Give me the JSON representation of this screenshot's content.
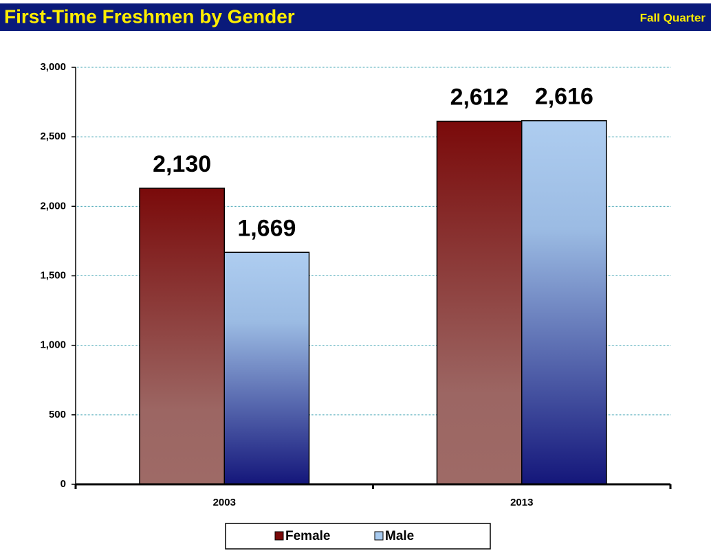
{
  "chart_data": {
    "type": "bar",
    "title": "First-Time Freshmen by Gender",
    "subtitle": "Fall Quarter",
    "categories": [
      "2003",
      "2013"
    ],
    "series": [
      {
        "name": "Female",
        "color": "#7a0a0a",
        "values": [
          2130,
          2612
        ],
        "value_labels": [
          "2,130",
          "2,612"
        ]
      },
      {
        "name": "Male",
        "color": "#a8cbf0",
        "values": [
          1669,
          2616
        ],
        "value_labels": [
          "1,669",
          "2,616"
        ]
      }
    ],
    "ylim": [
      0,
      3000
    ],
    "yticks": [
      0,
      500,
      {
        "value": 1000,
        "label": "1,000"
      },
      {
        "value": 1500,
        "label": "1,500"
      },
      {
        "value": 2000,
        "label": "2,000"
      },
      {
        "value": 2500,
        "label": "2,500"
      },
      {
        "value": 3000,
        "label": "3,000"
      }
    ],
    "grid": true,
    "legend": "bottom"
  }
}
